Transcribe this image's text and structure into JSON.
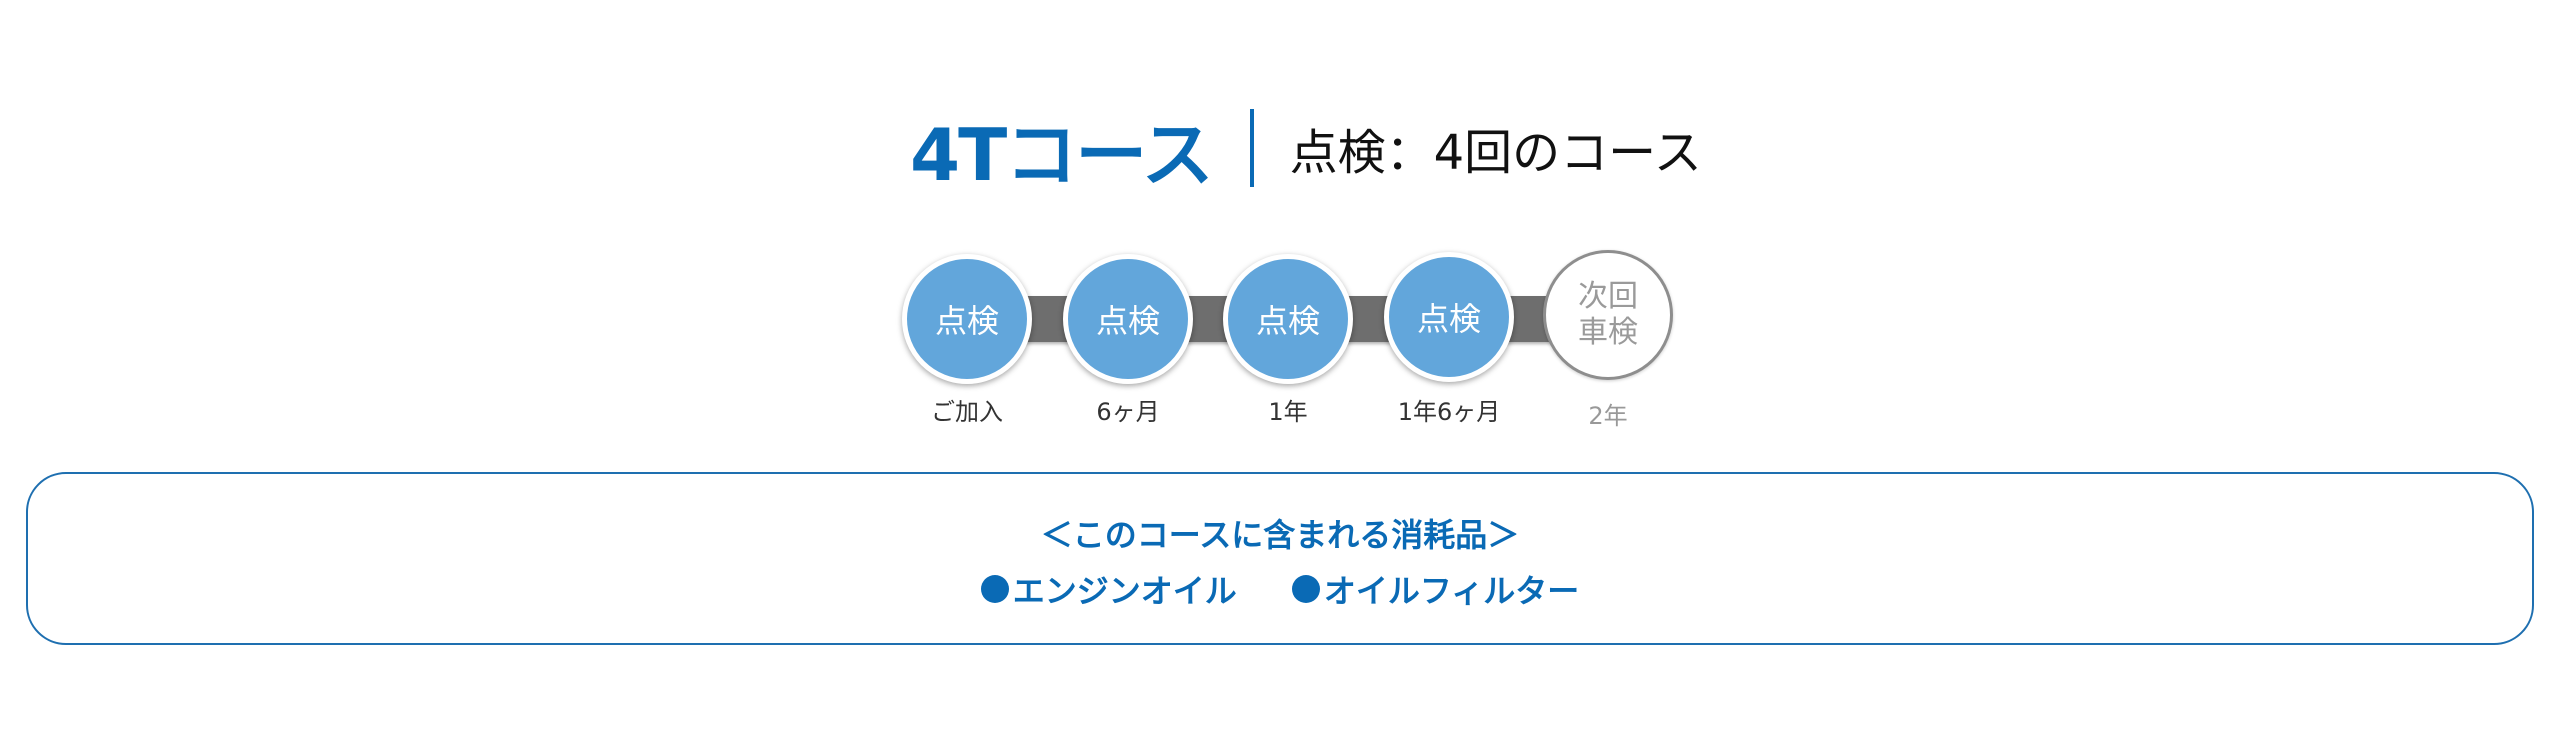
{
  "header": {
    "course_name": "4Tコース",
    "course_description": "点検：4回のコース"
  },
  "timeline": {
    "steps": [
      {
        "circle_label": "点検",
        "period": "ご加入",
        "status": "done"
      },
      {
        "circle_label": "点検",
        "period": "6ヶ月",
        "status": "done"
      },
      {
        "circle_label": "点検",
        "period": "1年",
        "status": "done"
      },
      {
        "circle_label": "点検",
        "period": "1年6ヶ月",
        "status": "done"
      },
      {
        "circle_label_line1": "次回",
        "circle_label_line2": "車検",
        "period": "2年",
        "status": "next"
      }
    ]
  },
  "consumables": {
    "heading": "＜このコースに含まれる消耗品＞",
    "items": [
      "エンジンオイル",
      "オイルフィルター"
    ]
  },
  "colors": {
    "accent": "#0a6ab5",
    "circle_fill": "#62a6db",
    "connector": "#6e6e6e",
    "next_border": "#8e8e8e"
  }
}
